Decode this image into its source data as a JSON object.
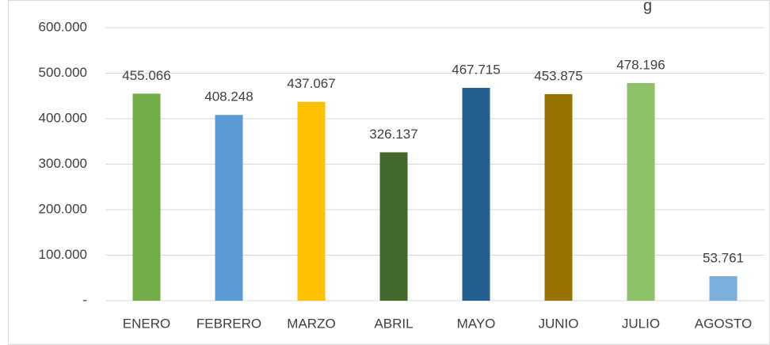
{
  "chart_data": {
    "type": "bar",
    "title": "g",
    "categories": [
      "ENERO",
      "FEBRERO",
      "MARZO",
      "ABRIL",
      "MAYO",
      "JUNIO",
      "JULIO",
      "AGOSTO"
    ],
    "values": [
      455066,
      408248,
      437067,
      326137,
      467715,
      453875,
      478196,
      53761
    ],
    "value_labels": [
      "455.066",
      "408.248",
      "437.067",
      "326.137",
      "467.715",
      "453.875",
      "478.196",
      "53.761"
    ],
    "colors": [
      "#70ad47",
      "#5b9bd5",
      "#ffc000",
      "#43682b",
      "#255e91",
      "#997300",
      "#8cc168",
      "#7cafdd"
    ],
    "ylim": [
      0,
      600000
    ],
    "yticks": [
      {
        "value": 0,
        "label": "-"
      },
      {
        "value": 100000,
        "label": "100.000"
      },
      {
        "value": 200000,
        "label": "200.000"
      },
      {
        "value": 300000,
        "label": "300.000"
      },
      {
        "value": 400000,
        "label": "400.000"
      },
      {
        "value": 500000,
        "label": "500.000"
      },
      {
        "value": 600000,
        "label": "600.000"
      }
    ],
    "grid": true
  }
}
